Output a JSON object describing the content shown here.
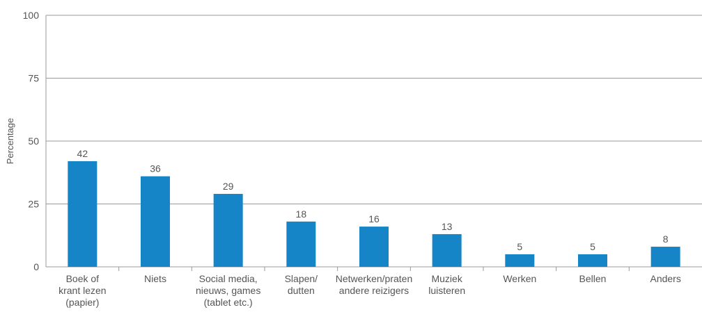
{
  "chart_data": {
    "type": "bar",
    "categories": [
      [
        "Boek of",
        "krant lezen",
        "(papier)"
      ],
      [
        "Niets"
      ],
      [
        "Social media,",
        "nieuws, games",
        "(tablet etc.)"
      ],
      [
        "Slapen/",
        "dutten"
      ],
      [
        "Netwerken/praten",
        "andere reizigers"
      ],
      [
        "Muziek",
        "luisteren"
      ],
      [
        "Werken"
      ],
      [
        "Bellen"
      ],
      [
        "Anders"
      ]
    ],
    "values": [
      42,
      36,
      29,
      18,
      16,
      13,
      5,
      5,
      8
    ],
    "value_labels": [
      "42",
      "36",
      "29",
      "18",
      "16",
      "13",
      "5",
      "5",
      "8"
    ],
    "ylabel": "Percentage",
    "ylim": [
      0,
      100
    ],
    "yticks": [
      0,
      25,
      50,
      75,
      100
    ],
    "ytick_labels": [
      "0",
      "25",
      "50",
      "75",
      "100"
    ],
    "grid": true,
    "legend": "none",
    "bar_color": "#1585c8",
    "grid_color": "#999999",
    "axis_color": "#999999",
    "text_color": "#555555"
  }
}
